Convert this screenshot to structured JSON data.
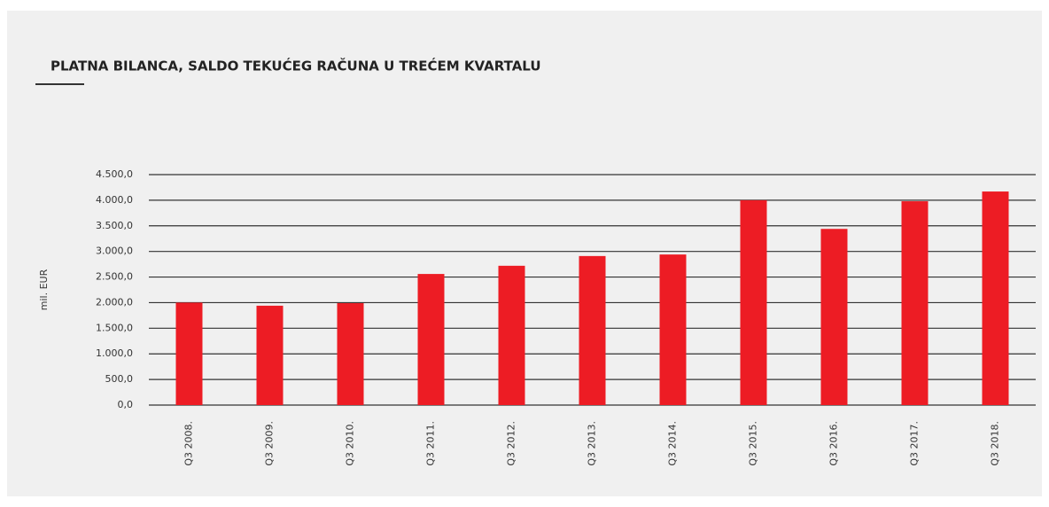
{
  "chart_data": {
    "type": "bar",
    "title": "PLATNA BILANCA, SALDO TEKUĆEG RAČUNA U TREĆEM KVARTALU",
    "y_label": "mil. EUR",
    "categories": [
      "Q3 2008.",
      "Q3 2009.",
      "Q3 2010.",
      "Q3 2011.",
      "Q3 2012.",
      "Q3 2013.",
      "Q3 2014.",
      "Q3 2015.",
      "Q3 2016.",
      "Q3 2017.",
      "Q3 2018."
    ],
    "values": [
      2000,
      1940,
      1990,
      2560,
      2720,
      2910,
      2940,
      4000,
      3440,
      3980,
      4170
    ],
    "color": "#ed1c24",
    "ylim": [
      0,
      4500
    ],
    "yticks": [
      {
        "value": 0,
        "label": "0,0"
      },
      {
        "value": 500,
        "label": "500,0"
      },
      {
        "value": 1000,
        "label": "1.000,0"
      },
      {
        "value": 1500,
        "label": "1.500,0"
      },
      {
        "value": 2000,
        "label": "2.000,0"
      },
      {
        "value": 2500,
        "label": "2.500,0"
      },
      {
        "value": 3000,
        "label": "3.000,0"
      },
      {
        "value": 3500,
        "label": "3.500,0"
      },
      {
        "value": 4000,
        "label": "4.000,0"
      },
      {
        "value": 4500,
        "label": "4.500,0"
      }
    ],
    "grid": true
  }
}
